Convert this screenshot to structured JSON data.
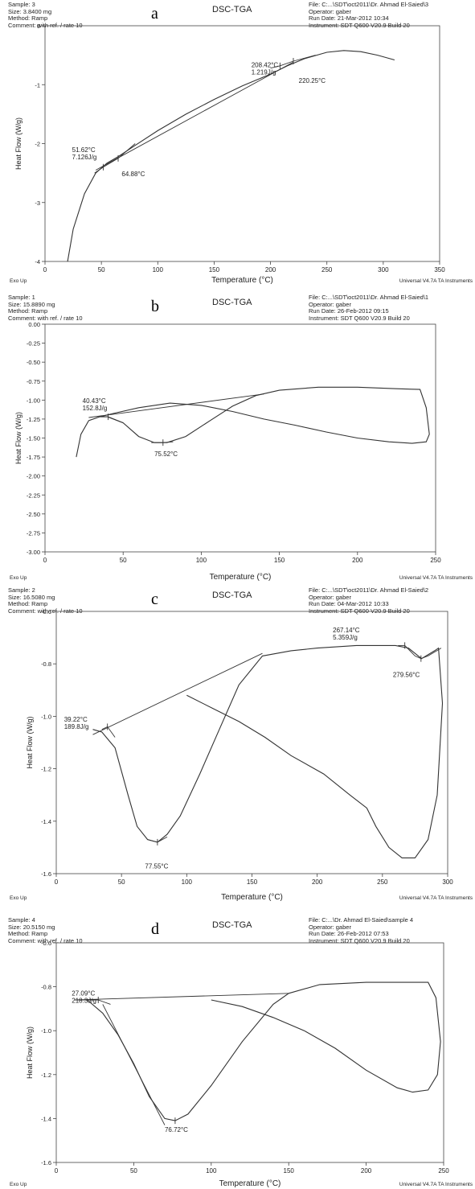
{
  "panels": [
    {
      "letter": "a",
      "title": "DSC-TGA",
      "header_left": [
        "Sample: 3",
        "Size:  3.8400 mg",
        "Method: Ramp",
        "Comment: with ref. / rate 10"
      ],
      "header_right": [
        "File: C:...\\SDT\\oct2011\\Dr. Ahmad El-Saied\\3",
        "Operator: gaber",
        "Run Date: 21-Mar-2012 10:34",
        "Instrument: SDT Q600 V20.9 Build 20"
      ],
      "ylabel": "Heat Flow (W/g)",
      "xlabel": "Temperature (°C)",
      "exo_label": "Exo Up",
      "footer": "Universal V4.7A TA Instruments",
      "xlim": [
        0,
        350
      ],
      "ylim": [
        -4,
        0
      ],
      "xticks": [
        0,
        50,
        100,
        150,
        200,
        250,
        300,
        350
      ],
      "yticks": [
        0,
        -1,
        -2,
        -3,
        -4
      ],
      "ytick_labels": [
        "0",
        "-1",
        "-2",
        "-3",
        "-4"
      ],
      "annotations": [
        {
          "lines": [
            "51.62°C",
            "7.126J/g"
          ],
          "x": 24,
          "y": -2.14
        },
        {
          "lines": [
            "64.88°C"
          ],
          "x": 68,
          "y": -2.55
        },
        {
          "lines": [
            "208.42°C",
            "1.219J/g"
          ],
          "x": 183,
          "y": -0.7
        },
        {
          "lines": [
            "220.25°C"
          ],
          "x": 225,
          "y": -0.97
        }
      ]
    },
    {
      "letter": "b",
      "title": "DSC-TGA",
      "header_left": [
        "Sample: 1",
        "Size:  15.8890 mg",
        "Method: Ramp",
        "Comment: with ref. / rate 10"
      ],
      "header_right": [
        "File: C:...\\SDT\\oct2011\\Dr. Ahmad El-Saied\\1",
        "Operator: gaber",
        "Run Date: 26-Feb-2012 09:15",
        "Instrument: SDT Q600 V20.9 Build 20"
      ],
      "ylabel": "Heat Flow (W/g)",
      "xlabel": "Temperature (°C)",
      "exo_label": "Exo Up",
      "footer": "Universal V4.7A TA Instruments",
      "xlim": [
        0,
        250
      ],
      "ylim": [
        -3,
        0
      ],
      "xticks": [
        0,
        50,
        100,
        150,
        200,
        250
      ],
      "yticks": [
        0,
        -0.25,
        -0.5,
        -0.75,
        -1,
        -1.25,
        -1.5,
        -1.75,
        -2,
        -2.25,
        -2.5,
        -2.75,
        -3
      ],
      "ytick_labels": [
        "0.00",
        "-0.25",
        "-0.50",
        "-0.75",
        "-1.00",
        "-1.25",
        "-1.50",
        "-1.75",
        "-2.00",
        "-2.25",
        "-2.50",
        "-2.75",
        "-3.00"
      ],
      "annotations": [
        {
          "lines": [
            "40.43°C",
            "152.8J/g"
          ],
          "x": 24,
          "y": -1.04
        },
        {
          "lines": [
            "75.52°C"
          ],
          "x": 70,
          "y": -1.74
        }
      ]
    },
    {
      "letter": "c",
      "title": "DSC-TGA",
      "header_left": [
        "Sample: 2",
        "Size:  16.5080 mg",
        "Method: Ramp",
        "Comment: with ref. / rate 10"
      ],
      "header_right": [
        "File: C:...\\SDT\\oct2011\\Dr. Ahmad El-Saied\\2",
        "Operator: gaber",
        "Run Date: 04-Mar-2012 10:33",
        "Instrument: SDT Q600 V20.9 Build 20"
      ],
      "ylabel": "Heat Flow (W/g)",
      "xlabel": "Temperature (°C)",
      "exo_label": "Exo Up",
      "footer": "Universal V4.7A TA Instruments",
      "xlim": [
        0,
        300
      ],
      "ylim": [
        -1.6,
        -0.6
      ],
      "xticks": [
        0,
        50,
        100,
        150,
        200,
        250,
        300
      ],
      "yticks": [
        -0.6,
        -0.8,
        -1,
        -1.2,
        -1.4,
        -1.6
      ],
      "ytick_labels": [
        "-0.6",
        "-0.8",
        "-1.0",
        "-1.2",
        "-1.4",
        "-1.6"
      ],
      "annotations": [
        {
          "lines": [
            "39.22°C",
            "189.8J/g"
          ],
          "x": 6,
          "y": -1.02
        },
        {
          "lines": [
            "77.55°C"
          ],
          "x": 68,
          "y": -1.58
        },
        {
          "lines": [
            "267.14°C",
            "5.359J/g"
          ],
          "x": 212,
          "y": -0.68
        },
        {
          "lines": [
            "279.56°C"
          ],
          "x": 258,
          "y": -0.85
        }
      ]
    },
    {
      "letter": "d",
      "title": "DSC-TGA",
      "header_left": [
        "Sample: 4",
        "Size:  20.5150 mg",
        "Method: Ramp",
        "Comment: with ref. / rate 10"
      ],
      "header_right": [
        "File: C:...\\Dr. Ahmad El-Saied\\sample 4",
        "Operator: gaber",
        "Run Date: 26-Feb-2012 07:53",
        "Instrument: SDT Q600 V20.9 Build 20"
      ],
      "ylabel": "Heat Flow (W/g)",
      "xlabel": "Temperature (°C)",
      "exo_label": "Exo Up",
      "footer": "Universal V4.7A TA Instruments",
      "xlim": [
        0,
        250
      ],
      "ylim": [
        -1.6,
        -0.6
      ],
      "xticks": [
        0,
        50,
        100,
        150,
        200,
        250
      ],
      "yticks": [
        -0.6,
        -0.8,
        -1,
        -1.2,
        -1.4,
        -1.6
      ],
      "ytick_labels": [
        "-0.6",
        "-0.8",
        "-1.0",
        "-1.2",
        "-1.4",
        "-1.6"
      ],
      "annotations": [
        {
          "lines": [
            "27.09°C",
            "218.3J/g"
          ],
          "x": 10,
          "y": -0.84
        },
        {
          "lines": [
            "76.72°C"
          ],
          "x": 70,
          "y": -1.46
        }
      ]
    }
  ],
  "chart_data": [
    {
      "type": "line",
      "title": "DSC-TGA",
      "xlabel": "Temperature (°C)",
      "ylabel": "Heat Flow (W/g)",
      "xlim": [
        0,
        350
      ],
      "ylim": [
        -4,
        0
      ],
      "grid": false,
      "legend": "none",
      "series": [
        {
          "x": [
            20,
            25,
            35,
            45,
            55,
            65,
            80,
            100,
            125,
            150,
            175,
            200,
            215,
            230,
            250,
            265,
            280,
            295,
            310
          ],
          "y": [
            -4.0,
            -3.45,
            -2.85,
            -2.5,
            -2.33,
            -2.22,
            -2.03,
            -1.78,
            -1.5,
            -1.25,
            -1.02,
            -0.82,
            -0.68,
            -0.56,
            -0.45,
            -0.42,
            -0.44,
            -0.5,
            -0.58
          ]
        },
        {
          "x": [
            45,
            220
          ],
          "y": [
            -2.45,
            -0.62
          ]
        },
        {
          "x": [
            44,
            51.62,
            64.88,
            80
          ],
          "y": [
            -2.5,
            -2.4,
            -2.25,
            -2.0
          ]
        },
        {
          "x": [
            200,
            208.42,
            220.25,
            240
          ],
          "y": [
            -0.72,
            -0.68,
            -0.6,
            -0.5
          ]
        }
      ],
      "peaks": [
        {
          "label": "51.62°C",
          "x": 51.62,
          "y": -2.4,
          "enthalpy": "7.126J/g"
        },
        {
          "label": "64.88°C",
          "x": 64.88,
          "y": -2.25
        },
        {
          "label": "208.42°C",
          "x": 208.42,
          "y": -0.68,
          "enthalpy": "1.219J/g"
        },
        {
          "label": "220.25°C",
          "x": 220.25,
          "y": -0.6
        }
      ]
    },
    {
      "type": "line",
      "title": "DSC-TGA",
      "xlabel": "Temperature (°C)",
      "ylabel": "Heat Flow (W/g)",
      "xlim": [
        0,
        250
      ],
      "ylim": [
        -3,
        0
      ],
      "grid": false,
      "legend": "none",
      "series": [
        {
          "x": [
            20,
            23,
            28,
            35,
            40,
            50,
            60,
            70,
            78,
            90,
            105,
            120,
            135,
            150,
            175,
            200,
            225,
            240,
            244,
            246,
            244,
            235,
            220,
            200,
            180,
            160,
            140,
            120,
            100,
            80,
            60,
            45,
            35
          ],
          "y": [
            -1.75,
            -1.45,
            -1.27,
            -1.22,
            -1.22,
            -1.3,
            -1.48,
            -1.56,
            -1.56,
            -1.48,
            -1.28,
            -1.08,
            -0.94,
            -0.87,
            -0.83,
            -0.83,
            -0.85,
            -0.86,
            -1.1,
            -1.45,
            -1.55,
            -1.57,
            -1.55,
            -1.5,
            -1.42,
            -1.33,
            -1.25,
            -1.15,
            -1.07,
            -1.04,
            -1.1,
            -1.17,
            -1.22
          ]
        },
        {
          "x": [
            28,
            140
          ],
          "y": [
            -1.23,
            -0.92
          ]
        },
        {
          "x": [
            35,
            40.43,
            50
          ],
          "y": [
            -1.22,
            -1.22,
            -1.3
          ]
        },
        {
          "x": [
            68,
            75.52,
            82
          ],
          "y": [
            -1.56,
            -1.56,
            -1.55
          ]
        }
      ],
      "peaks": [
        {
          "label": "40.43°C",
          "x": 40.43,
          "y": -1.22,
          "enthalpy": "152.8J/g"
        },
        {
          "label": "75.52°C",
          "x": 75.52,
          "y": -1.56
        }
      ]
    },
    {
      "type": "line",
      "title": "DSC-TGA",
      "xlabel": "Temperature (°C)",
      "ylabel": "Heat Flow (W/g)",
      "xlim": [
        0,
        300
      ],
      "ylim": [
        -1.6,
        -0.6
      ],
      "grid": false,
      "legend": "none",
      "series": [
        {
          "x": [
            28,
            35,
            45,
            55,
            62,
            70,
            77.55,
            85,
            95,
            110,
            125,
            140,
            158,
            180,
            200,
            230,
            260,
            270,
            280,
            290,
            293,
            296,
            292,
            285,
            275,
            265,
            255,
            245,
            238,
            225,
            205,
            180,
            160,
            140,
            120,
            100
          ],
          "y": [
            -1.05,
            -1.06,
            -1.12,
            -1.3,
            -1.42,
            -1.47,
            -1.48,
            -1.45,
            -1.38,
            -1.22,
            -1.05,
            -0.88,
            -0.77,
            -0.75,
            -0.74,
            -0.73,
            -0.73,
            -0.74,
            -0.78,
            -0.75,
            -0.74,
            -0.95,
            -1.3,
            -1.47,
            -1.54,
            -1.54,
            -1.5,
            -1.42,
            -1.35,
            -1.3,
            -1.22,
            -1.15,
            -1.08,
            -1.02,
            -0.97,
            -0.92
          ]
        },
        {
          "x": [
            28,
            158
          ],
          "y": [
            -1.07,
            -0.76
          ]
        },
        {
          "x": [
            35,
            39.22,
            45
          ],
          "y": [
            -1.05,
            -1.04,
            -1.08
          ]
        },
        {
          "x": [
            70,
            77.55,
            85
          ],
          "y": [
            -1.47,
            -1.48,
            -1.46
          ]
        },
        {
          "x": [
            262,
            267.14,
            275,
            279.56,
            285,
            295
          ],
          "y": [
            -0.73,
            -0.73,
            -0.77,
            -0.78,
            -0.77,
            -0.74
          ]
        }
      ],
      "peaks": [
        {
          "label": "39.22°C",
          "x": 39.22,
          "y": -1.04,
          "enthalpy": "189.8J/g"
        },
        {
          "label": "77.55°C",
          "x": 77.55,
          "y": -1.48
        },
        {
          "label": "267.14°C",
          "x": 267.14,
          "y": -0.73,
          "enthalpy": "5.359J/g"
        },
        {
          "label": "279.56°C",
          "x": 279.56,
          "y": -0.78
        }
      ]
    },
    {
      "type": "line",
      "title": "DSC-TGA",
      "xlabel": "Temperature (°C)",
      "ylabel": "Heat Flow (W/g)",
      "xlim": [
        0,
        250
      ],
      "ylim": [
        -1.6,
        -0.6
      ],
      "grid": false,
      "legend": "none",
      "series": [
        {
          "x": [
            12,
            20,
            30,
            40,
            50,
            60,
            70,
            76.72,
            85,
            100,
            120,
            140,
            150,
            170,
            200,
            225,
            240,
            245,
            248,
            246,
            240,
            230,
            220,
            200,
            180,
            160,
            140,
            120,
            100
          ],
          "y": [
            -0.86,
            -0.86,
            -0.92,
            -1.02,
            -1.15,
            -1.3,
            -1.4,
            -1.41,
            -1.38,
            -1.25,
            -1.05,
            -0.88,
            -0.83,
            -0.79,
            -0.78,
            -0.78,
            -0.78,
            -0.85,
            -1.05,
            -1.2,
            -1.27,
            -1.28,
            -1.26,
            -1.18,
            -1.08,
            -1.0,
            -0.94,
            -0.89,
            -0.86
          ]
        },
        {
          "x": [
            12,
            150
          ],
          "y": [
            -0.86,
            -0.83
          ]
        },
        {
          "x": [
            20,
            27.09,
            35
          ],
          "y": [
            -0.86,
            -0.86,
            -0.88
          ]
        },
        {
          "x": [
            30,
            70
          ],
          "y": [
            -0.88,
            -1.43
          ]
        }
      ],
      "peaks": [
        {
          "label": "27.09°C",
          "x": 27.09,
          "y": -0.86,
          "enthalpy": "218.3J/g"
        },
        {
          "label": "76.72°C",
          "x": 76.72,
          "y": -1.41
        }
      ]
    }
  ]
}
